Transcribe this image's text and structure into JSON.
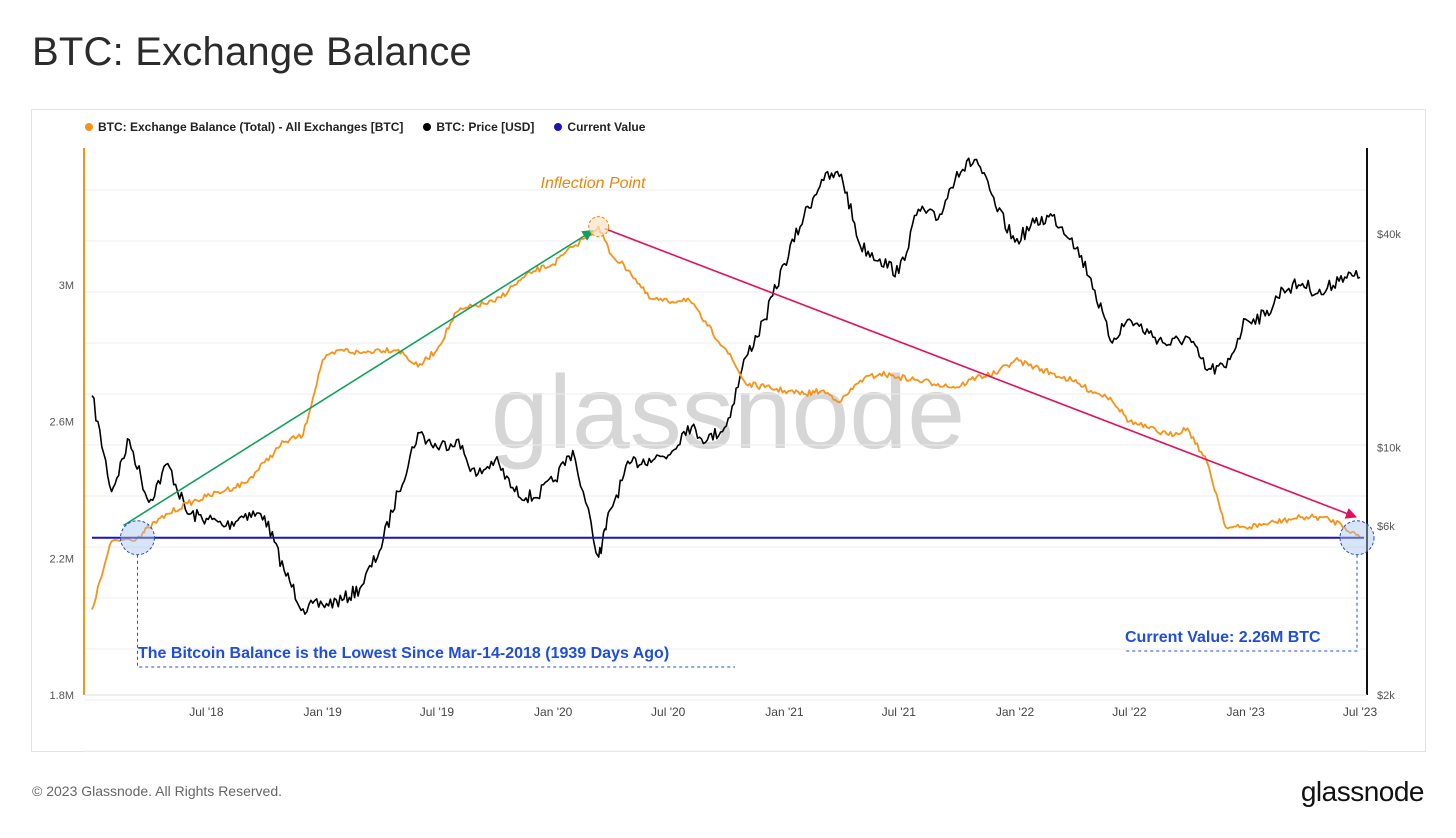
{
  "header": {
    "title": "BTC: Exchange Balance"
  },
  "footer": {
    "copyright": "© 2023 Glassnode. All Rights Reserved.",
    "logo": "glassnode"
  },
  "colors": {
    "balance": "#f7931a",
    "price": "#000000",
    "current": "#1b14b8",
    "up_trend": "#11a05c",
    "down_trend": "#e0115f",
    "note": "#1f4ed8"
  },
  "chart_data": {
    "type": "line",
    "title": "BTC: Exchange Balance",
    "watermark": "glassnode",
    "legend": [
      {
        "label": "BTC: Exchange Balance (Total) - All Exchanges [BTC]",
        "color": "#f7931a"
      },
      {
        "label": "BTC: Price [USD]",
        "color": "#000000"
      },
      {
        "label": "Current Value",
        "color": "#1b14b8"
      }
    ],
    "legend_position": "top-left",
    "x_ticks": [
      "Jul '18",
      "Jan '19",
      "Jul '19",
      "Jan '20",
      "Jul '20",
      "Jan '21",
      "Jul '21",
      "Jan '22",
      "Jul '22",
      "Jan '23",
      "Jul '23"
    ],
    "x_range": [
      "2018-01-01",
      "2023-07-01"
    ],
    "y_left": {
      "ticks": [
        "3M",
        "2.6M",
        "2.2M",
        "1.8M"
      ],
      "range": [
        1800000,
        3400000
      ],
      "unit": "BTC"
    },
    "y_right": {
      "ticks": [
        "$40k",
        "$10k",
        "$6k",
        "$2k"
      ],
      "scale": "log",
      "range": [
        2000,
        70000
      ],
      "unit": "USD"
    },
    "grid": true,
    "series": [
      {
        "name": "BTC: Exchange Balance (Total) - All Exchanges [BTC]",
        "axis": "left",
        "points": [
          [
            "2018-01-01",
            2050000
          ],
          [
            "2018-02-01",
            2250000
          ],
          [
            "2018-03-14",
            2260000
          ],
          [
            "2018-04-01",
            2290000
          ],
          [
            "2018-05-01",
            2330000
          ],
          [
            "2018-06-01",
            2360000
          ],
          [
            "2018-07-01",
            2380000
          ],
          [
            "2018-08-01",
            2400000
          ],
          [
            "2018-09-01",
            2420000
          ],
          [
            "2018-10-01",
            2480000
          ],
          [
            "2018-11-01",
            2540000
          ],
          [
            "2018-12-01",
            2560000
          ],
          [
            "2019-01-01",
            2780000
          ],
          [
            "2019-02-01",
            2810000
          ],
          [
            "2019-03-01",
            2800000
          ],
          [
            "2019-04-01",
            2810000
          ],
          [
            "2019-05-01",
            2810000
          ],
          [
            "2019-06-01",
            2760000
          ],
          [
            "2019-07-01",
            2810000
          ],
          [
            "2019-08-01",
            2920000
          ],
          [
            "2019-09-01",
            2940000
          ],
          [
            "2019-10-01",
            2950000
          ],
          [
            "2019-11-01",
            3000000
          ],
          [
            "2019-12-01",
            3040000
          ],
          [
            "2020-01-01",
            3060000
          ],
          [
            "2020-02-01",
            3110000
          ],
          [
            "2020-03-13",
            3170000
          ],
          [
            "2020-04-01",
            3090000
          ],
          [
            "2020-05-01",
            3040000
          ],
          [
            "2020-06-01",
            2960000
          ],
          [
            "2020-07-01",
            2950000
          ],
          [
            "2020-08-01",
            2960000
          ],
          [
            "2020-09-01",
            2880000
          ],
          [
            "2020-10-01",
            2810000
          ],
          [
            "2020-11-01",
            2710000
          ],
          [
            "2020-12-01",
            2700000
          ],
          [
            "2021-01-01",
            2690000
          ],
          [
            "2021-02-01",
            2680000
          ],
          [
            "2021-03-01",
            2690000
          ],
          [
            "2021-04-01",
            2660000
          ],
          [
            "2021-05-01",
            2720000
          ],
          [
            "2021-06-01",
            2740000
          ],
          [
            "2021-07-01",
            2730000
          ],
          [
            "2021-08-01",
            2720000
          ],
          [
            "2021-09-01",
            2710000
          ],
          [
            "2021-10-01",
            2700000
          ],
          [
            "2021-11-01",
            2730000
          ],
          [
            "2021-12-01",
            2740000
          ],
          [
            "2022-01-01",
            2780000
          ],
          [
            "2022-02-01",
            2760000
          ],
          [
            "2022-03-01",
            2740000
          ],
          [
            "2022-04-01",
            2720000
          ],
          [
            "2022-05-01",
            2690000
          ],
          [
            "2022-06-01",
            2670000
          ],
          [
            "2022-07-01",
            2600000
          ],
          [
            "2022-08-01",
            2580000
          ],
          [
            "2022-09-01",
            2560000
          ],
          [
            "2022-10-01",
            2580000
          ],
          [
            "2022-11-01",
            2480000
          ],
          [
            "2022-12-01",
            2290000
          ],
          [
            "2023-01-01",
            2290000
          ],
          [
            "2023-02-01",
            2300000
          ],
          [
            "2023-03-01",
            2310000
          ],
          [
            "2023-04-01",
            2320000
          ],
          [
            "2023-05-01",
            2320000
          ],
          [
            "2023-06-01",
            2300000
          ],
          [
            "2023-07-01",
            2260000
          ]
        ]
      },
      {
        "name": "BTC: Price [USD]",
        "axis": "right",
        "points": [
          [
            "2018-01-01",
            14000
          ],
          [
            "2018-02-01",
            7500
          ],
          [
            "2018-03-01",
            10500
          ],
          [
            "2018-04-01",
            7000
          ],
          [
            "2018-05-01",
            9000
          ],
          [
            "2018-06-01",
            6500
          ],
          [
            "2018-07-01",
            6300
          ],
          [
            "2018-08-01",
            6000
          ],
          [
            "2018-09-01",
            6500
          ],
          [
            "2018-10-01",
            6400
          ],
          [
            "2018-11-01",
            4500
          ],
          [
            "2018-12-01",
            3500
          ],
          [
            "2019-01-01",
            3600
          ],
          [
            "2019-02-01",
            3700
          ],
          [
            "2019-03-01",
            4000
          ],
          [
            "2019-04-01",
            5100
          ],
          [
            "2019-05-01",
            7500
          ],
          [
            "2019-06-01",
            11000
          ],
          [
            "2019-07-01",
            10000
          ],
          [
            "2019-08-01",
            10500
          ],
          [
            "2019-09-01",
            8300
          ],
          [
            "2019-10-01",
            9200
          ],
          [
            "2019-11-01",
            7500
          ],
          [
            "2019-12-01",
            7200
          ],
          [
            "2020-01-01",
            8000
          ],
          [
            "2020-02-01",
            9800
          ],
          [
            "2020-03-13",
            4900
          ],
          [
            "2020-04-01",
            6700
          ],
          [
            "2020-05-01",
            9000
          ],
          [
            "2020-06-01",
            9300
          ],
          [
            "2020-07-01",
            9500
          ],
          [
            "2020-08-01",
            11500
          ],
          [
            "2020-09-01",
            10500
          ],
          [
            "2020-10-01",
            11500
          ],
          [
            "2020-11-01",
            18000
          ],
          [
            "2020-12-01",
            23000
          ],
          [
            "2021-01-01",
            33000
          ],
          [
            "2021-02-01",
            45000
          ],
          [
            "2021-03-01",
            57000
          ],
          [
            "2021-04-01",
            59000
          ],
          [
            "2021-05-01",
            37000
          ],
          [
            "2021-06-01",
            34000
          ],
          [
            "2021-07-01",
            31000
          ],
          [
            "2021-08-01",
            47000
          ],
          [
            "2021-09-01",
            44000
          ],
          [
            "2021-10-01",
            60000
          ],
          [
            "2021-11-01",
            65000
          ],
          [
            "2021-12-01",
            48000
          ],
          [
            "2022-01-01",
            38000
          ],
          [
            "2022-02-01",
            43000
          ],
          [
            "2022-03-01",
            45000
          ],
          [
            "2022-04-01",
            39000
          ],
          [
            "2022-05-01",
            30000
          ],
          [
            "2022-06-01",
            20000
          ],
          [
            "2022-07-01",
            23000
          ],
          [
            "2022-08-01",
            21000
          ],
          [
            "2022-09-01",
            19500
          ],
          [
            "2022-10-01",
            20500
          ],
          [
            "2022-11-01",
            16500
          ],
          [
            "2022-12-01",
            16800
          ],
          [
            "2023-01-01",
            23000
          ],
          [
            "2023-02-01",
            23500
          ],
          [
            "2023-03-01",
            28000
          ],
          [
            "2023-04-01",
            29000
          ],
          [
            "2023-05-01",
            27000
          ],
          [
            "2023-06-01",
            30500
          ],
          [
            "2023-07-01",
            30200
          ]
        ]
      },
      {
        "name": "Current Value",
        "axis": "left",
        "value": 2260000
      }
    ],
    "annotations": {
      "inflection_label": "Inflection Point",
      "lowest_note": "The Bitcoin Balance is the Lowest Since Mar-14-2018 (1939 Days Ago)",
      "current_note": "Current Value: 2.26M BTC"
    }
  }
}
